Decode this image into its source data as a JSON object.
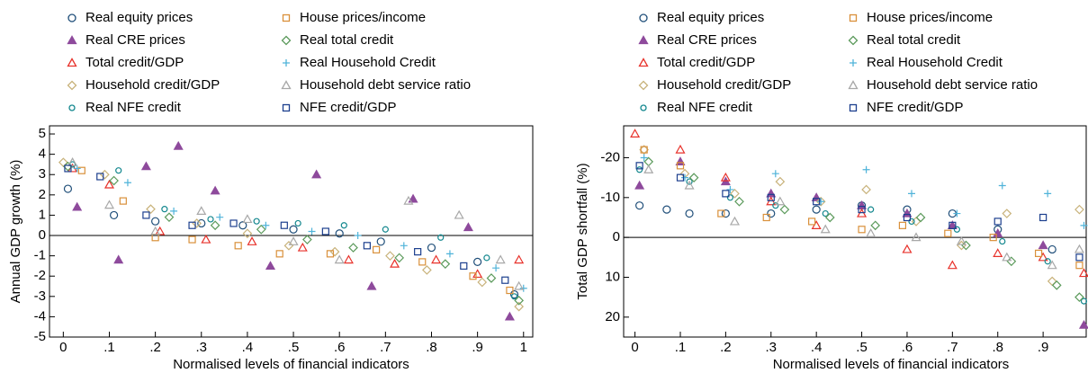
{
  "chart_data": [
    {
      "type": "scatter",
      "y_label": "Annual GDP growth (%)",
      "x_label": "Normalised levels of financial indicators",
      "xlim": [
        -0.03,
        1.02
      ],
      "ylim": [
        -5,
        5.4
      ],
      "xticks": [
        0,
        {
          "value": 0.1,
          "label": ".1"
        },
        {
          "value": 0.2,
          "label": ".2"
        },
        {
          "value": 0.3,
          "label": ".3"
        },
        {
          "value": 0.4,
          "label": ".4"
        },
        {
          "value": 0.5,
          "label": ".5"
        },
        {
          "value": 0.6,
          "label": ".6"
        },
        {
          "value": 0.7,
          "label": ".7"
        },
        {
          "value": 0.8,
          "label": ".8"
        },
        {
          "value": 0.9,
          "label": ".9"
        },
        1
      ],
      "yticks": [
        -5,
        -4,
        -3,
        -2,
        -1,
        0,
        1,
        2,
        3,
        4,
        5
      ],
      "hline": 0,
      "series": [
        {
          "name": "Real equity prices",
          "color": "#1f4e79",
          "marker": "circle",
          "x": [
            0.01,
            0.11,
            0.2,
            0.3,
            0.39,
            0.5,
            0.6,
            0.69,
            0.8,
            0.9,
            0.98
          ],
          "values": [
            2.3,
            1.0,
            0.7,
            0.6,
            0.5,
            0.3,
            0.1,
            -0.3,
            -0.6,
            -1.3,
            -2.9
          ]
        },
        {
          "name": "Real CRE prices",
          "color": "#8e4a9c",
          "marker": "triangle",
          "filled": true,
          "x": [
            0.03,
            0.12,
            0.18,
            0.25,
            0.33,
            0.45,
            0.55,
            0.67,
            0.76,
            0.88,
            0.97
          ],
          "values": [
            1.4,
            -1.2,
            3.4,
            4.4,
            2.2,
            -1.5,
            3.0,
            -2.5,
            1.8,
            0.4,
            -4.0
          ]
        },
        {
          "name": "Total credit/GDP",
          "color": "#e8322b",
          "marker": "triangle",
          "x": [
            0.02,
            0.1,
            0.21,
            0.31,
            0.41,
            0.52,
            0.62,
            0.72,
            0.81,
            0.9,
            0.99
          ],
          "values": [
            3.3,
            2.5,
            0.2,
            -0.2,
            -0.3,
            -0.6,
            -1.2,
            -1.4,
            -1.2,
            -1.9,
            -1.2
          ]
        },
        {
          "name": "Household credit/GDP",
          "color": "#c8b27a",
          "marker": "diamond",
          "x": [
            0.0,
            0.09,
            0.19,
            0.29,
            0.4,
            0.49,
            0.59,
            0.71,
            0.79,
            0.91,
            0.99
          ],
          "values": [
            3.6,
            3.0,
            1.3,
            0.6,
            0.1,
            -0.5,
            -0.8,
            -1.0,
            -1.7,
            -2.3,
            -3.5
          ]
        },
        {
          "name": "Real NFE credit",
          "color": "#13878e",
          "marker": "smallcircle",
          "x": [
            0.02,
            0.12,
            0.22,
            0.32,
            0.42,
            0.51,
            0.61,
            0.7,
            0.82,
            0.92,
            0.98
          ],
          "values": [
            3.5,
            3.2,
            1.3,
            0.8,
            0.7,
            0.6,
            0.5,
            0.3,
            -0.1,
            -1.1,
            -3.0
          ]
        },
        {
          "name": "House prices/income",
          "color": "#d9903a",
          "marker": "square",
          "x": [
            0.04,
            0.13,
            0.2,
            0.28,
            0.38,
            0.47,
            0.58,
            0.68,
            0.78,
            0.89,
            0.97
          ],
          "values": [
            3.2,
            1.7,
            -0.1,
            -0.2,
            -0.5,
            -0.9,
            -0.9,
            -0.7,
            -1.3,
            -2.0,
            -2.7
          ]
        },
        {
          "name": "Real total credit",
          "color": "#5b9a5b",
          "marker": "diamond",
          "x": [
            0.01,
            0.11,
            0.23,
            0.33,
            0.43,
            0.53,
            0.63,
            0.73,
            0.83,
            0.93,
            0.99
          ],
          "values": [
            3.4,
            2.7,
            0.9,
            0.5,
            0.3,
            -0.2,
            -0.6,
            -1.1,
            -1.4,
            -2.1,
            -3.2
          ]
        },
        {
          "name": "Real Household Credit",
          "color": "#4fb3d9",
          "marker": "plus",
          "x": [
            0.03,
            0.14,
            0.24,
            0.34,
            0.44,
            0.54,
            0.64,
            0.74,
            0.84,
            0.94,
            1.0
          ],
          "values": [
            3.3,
            2.6,
            1.2,
            0.9,
            0.5,
            0.2,
            0.0,
            -0.5,
            -0.9,
            -1.6,
            -2.6
          ]
        },
        {
          "name": "Household debt service ratio",
          "color": "#a8a8a8",
          "marker": "triangle",
          "x": [
            0.02,
            0.1,
            0.2,
            0.3,
            0.4,
            0.5,
            0.6,
            0.75,
            0.86,
            0.95,
            0.99
          ],
          "values": [
            3.6,
            1.5,
            0.2,
            1.2,
            0.8,
            -0.3,
            -1.2,
            1.7,
            1.0,
            -1.2,
            -2.5
          ]
        },
        {
          "name": "NFE credit/GDP",
          "color": "#1c3f8e",
          "marker": "square",
          "x": [
            0.01,
            0.08,
            0.18,
            0.28,
            0.37,
            0.48,
            0.57,
            0.66,
            0.77,
            0.87,
            0.96
          ],
          "values": [
            3.3,
            2.9,
            1.0,
            0.5,
            0.6,
            0.5,
            0.2,
            -0.5,
            -0.8,
            -1.5,
            -2.2
          ]
        }
      ]
    },
    {
      "type": "scatter",
      "y_label": "Total GDP shortfall (%)",
      "x_label": "Normalised levels of financial indicators",
      "xlim": [
        -0.025,
        0.995
      ],
      "ylim": [
        25,
        -28
      ],
      "xticks": [
        0,
        {
          "value": 0.1,
          "label": ".1"
        },
        {
          "value": 0.2,
          "label": ".2"
        },
        {
          "value": 0.3,
          "label": ".3"
        },
        {
          "value": 0.4,
          "label": ".4"
        },
        {
          "value": 0.5,
          "label": ".5"
        },
        {
          "value": 0.6,
          "label": ".6"
        },
        {
          "value": 0.7,
          "label": ".7"
        },
        {
          "value": 0.8,
          "label": ".8"
        },
        {
          "value": 0.9,
          "label": ".9"
        }
      ],
      "yticks": [
        20,
        10,
        0,
        -10,
        -20
      ],
      "hline": 0,
      "series": [
        {
          "name": "Real equity prices",
          "color": "#1f4e79",
          "marker": "circle",
          "x": [
            0.01,
            0.07,
            0.12,
            0.2,
            0.3,
            0.4,
            0.5,
            0.6,
            0.7,
            0.8,
            0.92
          ],
          "values": [
            -8,
            -7,
            -6,
            -6,
            -6,
            -7,
            -8,
            -7,
            -6,
            -2,
            3
          ]
        },
        {
          "name": "Real CRE prices",
          "color": "#8e4a9c",
          "marker": "triangle",
          "filled": true,
          "x": [
            0.01,
            0.1,
            0.2,
            0.3,
            0.4,
            0.5,
            0.6,
            0.7,
            0.8,
            0.9,
            0.99
          ],
          "values": [
            -13,
            -19,
            -14,
            -11,
            -10,
            -8,
            -6,
            -3,
            -1,
            2,
            22
          ]
        },
        {
          "name": "Total credit/GDP",
          "color": "#e8322b",
          "marker": "triangle",
          "x": [
            0.0,
            0.1,
            0.2,
            0.3,
            0.4,
            0.5,
            0.6,
            0.7,
            0.8,
            0.9,
            0.99
          ],
          "values": [
            -26,
            -22,
            -15,
            -9,
            -3,
            -6,
            3,
            7,
            4,
            5,
            9
          ]
        },
        {
          "name": "Household credit/GDP",
          "color": "#c8b27a",
          "marker": "diamond",
          "x": [
            0.02,
            0.11,
            0.22,
            0.32,
            0.41,
            0.51,
            0.62,
            0.72,
            0.82,
            0.92,
            0.98
          ],
          "values": [
            -22,
            -16,
            -11,
            -14,
            -9,
            -12,
            -4,
            2,
            -6,
            11,
            -7
          ]
        },
        {
          "name": "Real NFE credit",
          "color": "#13878e",
          "marker": "smallcircle",
          "x": [
            0.01,
            0.12,
            0.21,
            0.31,
            0.42,
            0.52,
            0.61,
            0.71,
            0.81,
            0.91,
            0.99
          ],
          "values": [
            -17,
            -14,
            -10,
            -8,
            -6,
            -7,
            -4,
            -2,
            1,
            6,
            16
          ]
        },
        {
          "name": "House prices/income",
          "color": "#d9903a",
          "marker": "square",
          "x": [
            0.02,
            0.1,
            0.19,
            0.29,
            0.39,
            0.5,
            0.59,
            0.69,
            0.79,
            0.89,
            0.98
          ],
          "values": [
            -22,
            -18,
            -6,
            -5,
            -4,
            -2,
            -3,
            -1,
            0,
            4,
            7
          ]
        },
        {
          "name": "Real total credit",
          "color": "#5b9a5b",
          "marker": "diamond",
          "x": [
            0.03,
            0.13,
            0.23,
            0.33,
            0.43,
            0.53,
            0.63,
            0.73,
            0.83,
            0.93,
            0.98
          ],
          "values": [
            -19,
            -15,
            -9,
            -7,
            -5,
            -3,
            -5,
            2,
            6,
            12,
            15
          ]
        },
        {
          "name": "Real Household Credit",
          "color": "#4fb3d9",
          "marker": "plus",
          "x": [
            0.02,
            0.11,
            0.21,
            0.31,
            0.41,
            0.51,
            0.61,
            0.71,
            0.81,
            0.91,
            0.99
          ],
          "values": [
            -20,
            -15,
            -12,
            -16,
            -9,
            -17,
            -11,
            -6,
            -13,
            -11,
            -3
          ]
        },
        {
          "name": "Household debt service ratio",
          "color": "#a8a8a8",
          "marker": "triangle",
          "x": [
            0.03,
            0.12,
            0.22,
            0.32,
            0.42,
            0.52,
            0.62,
            0.72,
            0.82,
            0.92,
            0.98
          ],
          "values": [
            -17,
            -13,
            -4,
            -9,
            -2,
            -1,
            0,
            1,
            5,
            7,
            3
          ]
        },
        {
          "name": "NFE credit/GDP",
          "color": "#1c3f8e",
          "marker": "square",
          "x": [
            0.01,
            0.1,
            0.2,
            0.3,
            0.4,
            0.5,
            0.6,
            0.7,
            0.8,
            0.9,
            0.98
          ],
          "values": [
            -18,
            -15,
            -11,
            -10,
            -9,
            -7,
            -5,
            -3,
            -4,
            -5,
            5
          ]
        }
      ]
    }
  ]
}
